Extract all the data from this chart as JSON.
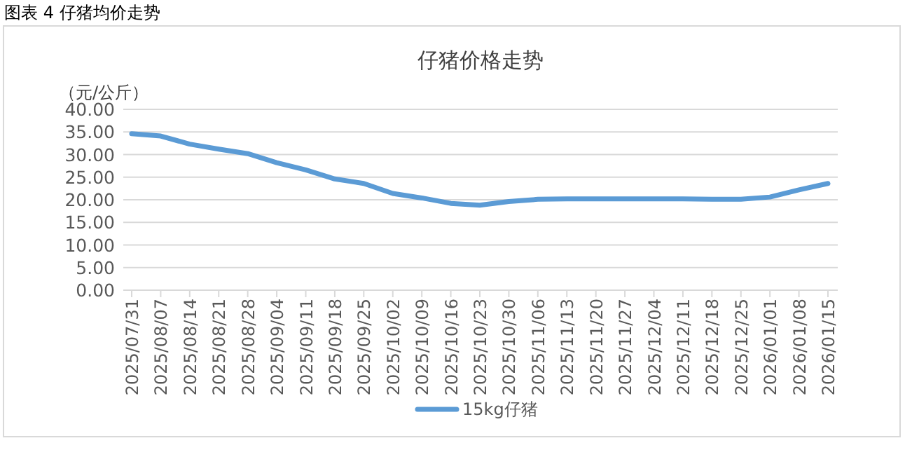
{
  "chart_data": {
    "type": "line",
    "title": "仔猪价格走势",
    "ylabel": "（元/公斤）",
    "annotations": [
      "图表 4 仔猪均价走势"
    ],
    "categories": [
      "2025/07/31",
      "2025/08/07",
      "2025/08/14",
      "2025/08/21",
      "2025/08/28",
      "2025/09/04",
      "2025/09/11",
      "2025/09/18",
      "2025/09/25",
      "2025/10/02",
      "2025/10/09",
      "2025/10/16",
      "2025/10/23",
      "2025/10/30",
      "2025/11/06",
      "2025/11/13",
      "2025/11/20",
      "2025/11/27",
      "2025/12/04",
      "2025/12/11",
      "2025/12/18",
      "2025/12/25",
      "2026/01/01",
      "2026/01/08",
      "2026/01/15"
    ],
    "series": [
      {
        "name": "15kg仔猪",
        "color": "#5b9bd5",
        "values": [
          34.6,
          34.1,
          32.3,
          31.2,
          30.2,
          28.2,
          26.6,
          24.6,
          23.6,
          21.4,
          20.4,
          19.2,
          18.8,
          19.6,
          20.1,
          20.2,
          20.2,
          20.2,
          20.2,
          20.2,
          20.1,
          20.1,
          20.6,
          22.2,
          23.6
        ]
      }
    ],
    "ylim": [
      0,
      40
    ],
    "yticks": [
      {
        "value": 0,
        "label": "0.00"
      },
      {
        "value": 5,
        "label": "5.00"
      },
      {
        "value": 10,
        "label": "10.00"
      },
      {
        "value": 15,
        "label": "15.00"
      },
      {
        "value": 20,
        "label": "20.00"
      },
      {
        "value": 25,
        "label": "25.00"
      },
      {
        "value": 30,
        "label": "30.00"
      },
      {
        "value": 35,
        "label": "35.00"
      },
      {
        "value": 40,
        "label": "40.00"
      }
    ],
    "grid": "y",
    "legend": "bottom",
    "marker": "none",
    "line_style": "solid"
  }
}
